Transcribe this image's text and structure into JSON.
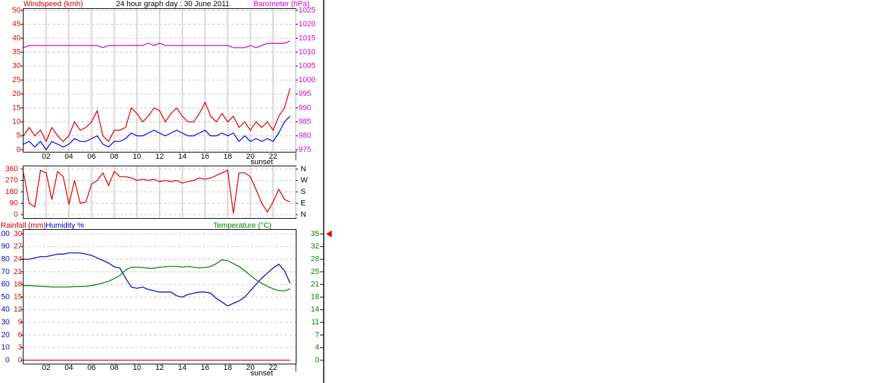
{
  "chart_data": [
    {
      "type": "line",
      "title": "24 hour graph day : 30 June 2011",
      "ylabel": "Windspeed (kmh)",
      "y2label": "Barometer (hPa)",
      "x": [
        0,
        0.5,
        1,
        1.5,
        2,
        2.5,
        3,
        3.5,
        4,
        4.5,
        5,
        5.5,
        6,
        6.5,
        7,
        7.5,
        8,
        8.5,
        9,
        9.5,
        10,
        10.5,
        11,
        11.5,
        12,
        12.5,
        13,
        13.5,
        14,
        14.5,
        15,
        15.5,
        16,
        16.5,
        17,
        17.5,
        18,
        18.5,
        19,
        19.5,
        20,
        20.5,
        21,
        21.5,
        22,
        22.5,
        23,
        23.5
      ],
      "xlim": [
        0,
        24
      ],
      "xticks": [
        {
          "value": 2,
          "label": "02"
        },
        {
          "value": 4,
          "label": "04"
        },
        {
          "value": 6,
          "label": "06"
        },
        {
          "value": 8,
          "label": "08"
        },
        10,
        12,
        14,
        16,
        18,
        20,
        22,
        {
          "value": 24,
          "label": "|"
        }
      ],
      "ylim": [
        0,
        50
      ],
      "yticks": [
        0,
        5,
        10,
        15,
        20,
        25,
        30,
        35,
        40,
        45,
        50
      ],
      "y2lim": [
        975,
        1025
      ],
      "y2ticks": [
        975,
        980,
        985,
        990,
        995,
        1000,
        1005,
        1010,
        1015,
        1020,
        1025
      ],
      "grid": true,
      "xgrid": true,
      "annotations": [
        {
          "text": "sunset",
          "x": 21
        }
      ],
      "series": [
        {
          "color": "#e00000",
          "values": [
            5,
            8,
            5,
            7,
            3,
            8,
            5,
            3,
            5,
            10,
            7,
            8,
            10,
            14,
            5,
            3,
            7,
            7,
            8,
            15,
            13,
            10,
            12,
            15,
            14,
            10,
            13,
            15,
            12,
            10,
            10,
            13,
            17,
            12,
            10,
            13,
            10,
            12,
            8,
            10,
            7,
            10,
            8,
            10,
            7,
            12,
            15,
            22
          ]
        },
        {
          "color": "#0000ff",
          "values": [
            2,
            3,
            1,
            3,
            0,
            3,
            2,
            1,
            2,
            4,
            3,
            3,
            4,
            5,
            2,
            1,
            3,
            3,
            4,
            6,
            5,
            5,
            6,
            7,
            6,
            5,
            6,
            7,
            6,
            5,
            5,
            6,
            7,
            5,
            5,
            6,
            5,
            6,
            3,
            5,
            3,
            4,
            3,
            4,
            3,
            6,
            10,
            12
          ]
        },
        {
          "color": "#cc00cc",
          "axis": "y2",
          "values": [
            1011.6,
            1012.4,
            1012.4,
            1012.4,
            1012.4,
            1012.4,
            1012.4,
            1012.4,
            1012.4,
            1012.4,
            1012.4,
            1012.4,
            1012.4,
            1012.4,
            1011.6,
            1012.4,
            1012.4,
            1012.4,
            1012.4,
            1012.4,
            1012.4,
            1012.4,
            1013.2,
            1012.4,
            1013.2,
            1012.4,
            1012.4,
            1012.4,
            1012.4,
            1012.4,
            1012.4,
            1012.4,
            1012.4,
            1012.4,
            1012.4,
            1012.4,
            1012.4,
            1011.6,
            1011.6,
            1011.6,
            1012.4,
            1011.6,
            1012.4,
            1013.2,
            1013.2,
            1013.2,
            1013.2,
            1014
          ]
        }
      ]
    },
    {
      "type": "line",
      "x": [
        0,
        0.5,
        1,
        1.5,
        2,
        2.5,
        3,
        3.5,
        4,
        4.5,
        5,
        5.5,
        6,
        6.5,
        7,
        7.5,
        8,
        8.5,
        9,
        9.5,
        10,
        10.5,
        11,
        11.5,
        12,
        12.5,
        13,
        13.5,
        14,
        14.5,
        15,
        15.5,
        16,
        16.5,
        17,
        17.5,
        18,
        18.5,
        19,
        19.5,
        20,
        20.5,
        21,
        21.5,
        22,
        22.5,
        23,
        23.5
      ],
      "xlim": [
        0,
        24
      ],
      "xticks": [
        {
          "value": 2,
          "label": "02"
        },
        {
          "value": 4,
          "label": "04"
        },
        {
          "value": 6,
          "label": "06"
        },
        {
          "value": 8,
          "label": "08"
        },
        10,
        12,
        14,
        16,
        18,
        20,
        22,
        {
          "value": 24,
          "label": "|"
        }
      ],
      "ylim": [
        0,
        360
      ],
      "yticks": [
        0,
        90,
        180,
        270,
        360
      ],
      "y2lim": [
        0,
        360
      ],
      "y2ticks": [
        {
          "value": 0,
          "label": "N"
        },
        {
          "value": 90,
          "label": "E"
        },
        {
          "value": 180,
          "label": "S"
        },
        {
          "value": 270,
          "label": "W"
        },
        {
          "value": 360,
          "label": "N"
        }
      ],
      "grid": true,
      "xgrid": true,
      "show_xticks": false,
      "series": [
        {
          "color": "#e00000",
          "values": [
            330,
            90,
            60,
            350,
            330,
            120,
            340,
            300,
            80,
            270,
            90,
            100,
            240,
            270,
            330,
            230,
            340,
            300,
            300,
            290,
            270,
            280,
            270,
            280,
            260,
            270,
            260,
            270,
            250,
            260,
            270,
            290,
            280,
            290,
            310,
            330,
            350,
            10,
            330,
            330,
            300,
            200,
            90,
            20,
            100,
            200,
            120,
            100
          ]
        }
      ]
    },
    {
      "type": "line",
      "ylabel": "Rainfall (mm)",
      "y3label": "Humidity %",
      "y2label": "Temperature (°C)",
      "x": [
        0,
        0.5,
        1,
        1.5,
        2,
        2.5,
        3,
        3.5,
        4,
        4.5,
        5,
        5.5,
        6,
        6.5,
        7,
        7.5,
        8,
        8.5,
        9,
        9.5,
        10,
        10.5,
        11,
        11.5,
        12,
        12.5,
        13,
        13.5,
        14,
        14.5,
        15,
        15.5,
        16,
        16.5,
        17,
        17.5,
        18,
        18.5,
        19,
        19.5,
        20,
        20.5,
        21,
        21.5,
        22,
        22.5,
        23,
        23.5
      ],
      "xlim": [
        0,
        24
      ],
      "xticks": [
        {
          "value": 2,
          "label": "02"
        },
        {
          "value": 4,
          "label": "04"
        },
        {
          "value": 6,
          "label": "06"
        },
        {
          "value": 8,
          "label": "08"
        },
        10,
        12,
        14,
        16,
        18,
        20,
        22,
        {
          "value": 24,
          "label": "|"
        }
      ],
      "ylim": [
        0,
        30
      ],
      "yticks": [
        0,
        3,
        6,
        9,
        12,
        15,
        18,
        21,
        24,
        27,
        30
      ],
      "y3lim": [
        0,
        100
      ],
      "y3ticks": [
        0,
        10,
        20,
        30,
        40,
        50,
        60,
        70,
        80,
        90,
        100
      ],
      "y2lim": [
        0,
        35
      ],
      "y2ticks": [
        0,
        {
          "value": 3.5,
          "label": "4"
        },
        7,
        {
          "value": 10.5,
          "label": "11"
        },
        14,
        {
          "value": 17.5,
          "label": "18"
        },
        21,
        {
          "value": 24.5,
          "label": "25"
        },
        28,
        {
          "value": 31.5,
          "label": "32"
        },
        35
      ],
      "grid": true,
      "xgrid": false,
      "annotations": [
        {
          "text": "sunset",
          "x": 21
        }
      ],
      "series": [
        {
          "color": "#e00000",
          "values": [
            0,
            0,
            0,
            0,
            0,
            0,
            0,
            0,
            0,
            0,
            0,
            0,
            0,
            0,
            0,
            0,
            0,
            0,
            0,
            0,
            0,
            0,
            0,
            0,
            0,
            0,
            0,
            0,
            0,
            0,
            0,
            0,
            0,
            0,
            0,
            0,
            0,
            0,
            0,
            0,
            0,
            0,
            0,
            0,
            0,
            0,
            0,
            0
          ]
        },
        {
          "color": "#0000cc",
          "axis": "y3",
          "values": [
            80,
            80,
            81,
            82,
            82,
            83,
            84,
            84,
            85,
            85,
            85,
            84,
            83,
            81,
            79,
            77,
            74,
            73,
            65,
            58,
            57,
            58,
            56,
            55,
            54,
            54,
            54,
            51,
            50,
            52,
            53,
            54,
            54,
            53,
            49,
            46,
            43,
            45,
            47,
            50,
            55,
            60,
            65,
            69,
            73,
            76,
            71,
            61
          ]
        },
        {
          "color": "#008000",
          "axis": "y2",
          "values": [
            20.7,
            20.7,
            20.6,
            20.5,
            20.4,
            20.3,
            20.3,
            20.3,
            20.3,
            20.4,
            20.4,
            20.5,
            20.7,
            21.0,
            21.4,
            21.9,
            22.6,
            23.5,
            25.0,
            25.8,
            25.8,
            25.7,
            25.5,
            25.5,
            25.8,
            25.9,
            26.0,
            26.0,
            25.8,
            26.0,
            25.8,
            25.6,
            25.7,
            26.0,
            26.8,
            27.8,
            27.6,
            26.8,
            26.0,
            24.8,
            23.5,
            22.3,
            21.3,
            20.5,
            19.8,
            19.3,
            19.2,
            19.8
          ]
        }
      ]
    }
  ]
}
